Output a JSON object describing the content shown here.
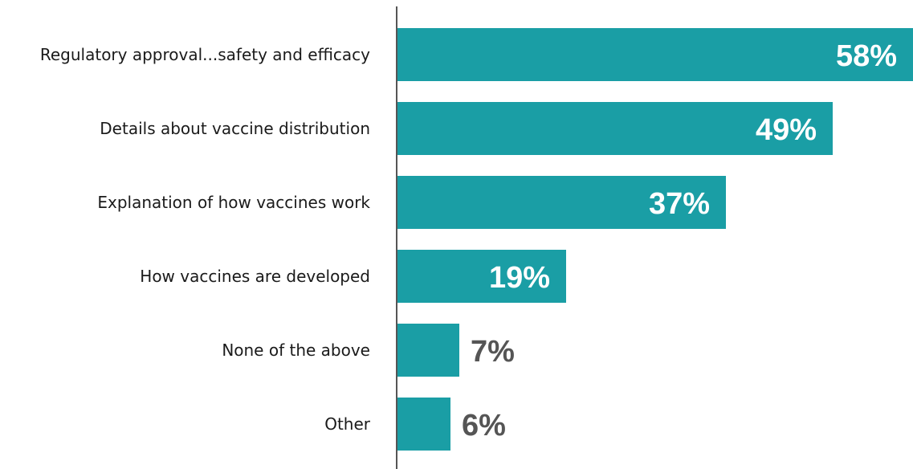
{
  "chart_data": {
    "type": "bar",
    "orientation": "horizontal",
    "title": "",
    "xlabel": "",
    "ylabel": "",
    "categories": [
      "Regulatory approval...safety and efficacy",
      "Details about vaccine distribution",
      "Explanation of how vaccines work",
      "How vaccines are developed",
      "None of the above",
      "Other"
    ],
    "values": [
      58,
      49,
      37,
      19,
      7,
      6
    ],
    "value_labels": [
      "58%",
      "49%",
      "37%",
      "19%",
      "7%",
      "6%"
    ],
    "xlim": [
      0,
      58
    ],
    "grid": false,
    "legend": "none"
  },
  "colors": {
    "bar": "#1a9ea5",
    "axis": "#555555",
    "label_inside": "#ffffff",
    "label_outside": "#555555",
    "category_text": "#1a1a1a"
  }
}
